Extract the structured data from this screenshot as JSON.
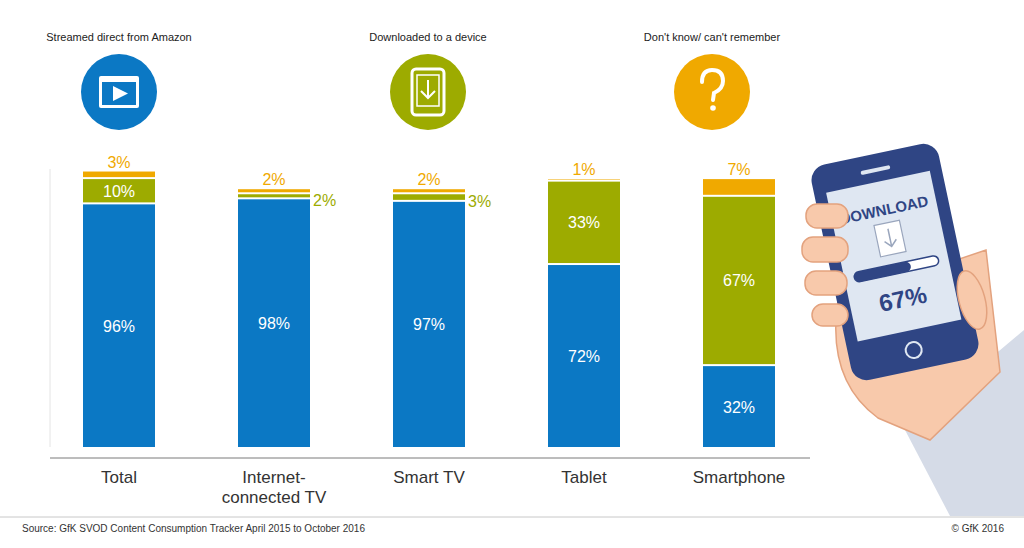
{
  "chart_data": {
    "type": "bar",
    "stacked": true,
    "data_labels": true,
    "legend": "top",
    "tick_labels": "x",
    "categories": [
      "Total",
      "Internet-connected TV",
      "Smart TV",
      "Tablet",
      "Smartphone"
    ],
    "series": [
      {
        "name": "Streamed direct from Amazon",
        "color": "#0b78c4",
        "values": [
          96,
          98,
          97,
          72,
          32
        ],
        "value_labels": [
          "96%",
          "98%",
          "97%",
          "72%",
          "32%"
        ]
      },
      {
        "name": "Downloaded to a device",
        "color": "#9dab00",
        "values": [
          10,
          2,
          3,
          33,
          67
        ],
        "value_labels": [
          "10%",
          "2%",
          "3%",
          "33%",
          "67%"
        ]
      },
      {
        "name": "Don't know/ can't remember",
        "color": "#f0a900",
        "values": [
          3,
          2,
          2,
          1,
          7
        ],
        "value_labels": [
          "3%",
          "2%",
          "2%",
          "1%",
          "7%"
        ]
      }
    ],
    "ylim": [
      0,
      110
    ],
    "source": "Source: GfK SVOD Content Consumption Tracker April 2015 to October 2016",
    "copyright": "© GfK 2016"
  },
  "illustration": {
    "screen_title": "DOWNLOAD",
    "progress": 67,
    "progress_range": [
      0,
      100
    ],
    "progress_label": "67%"
  }
}
